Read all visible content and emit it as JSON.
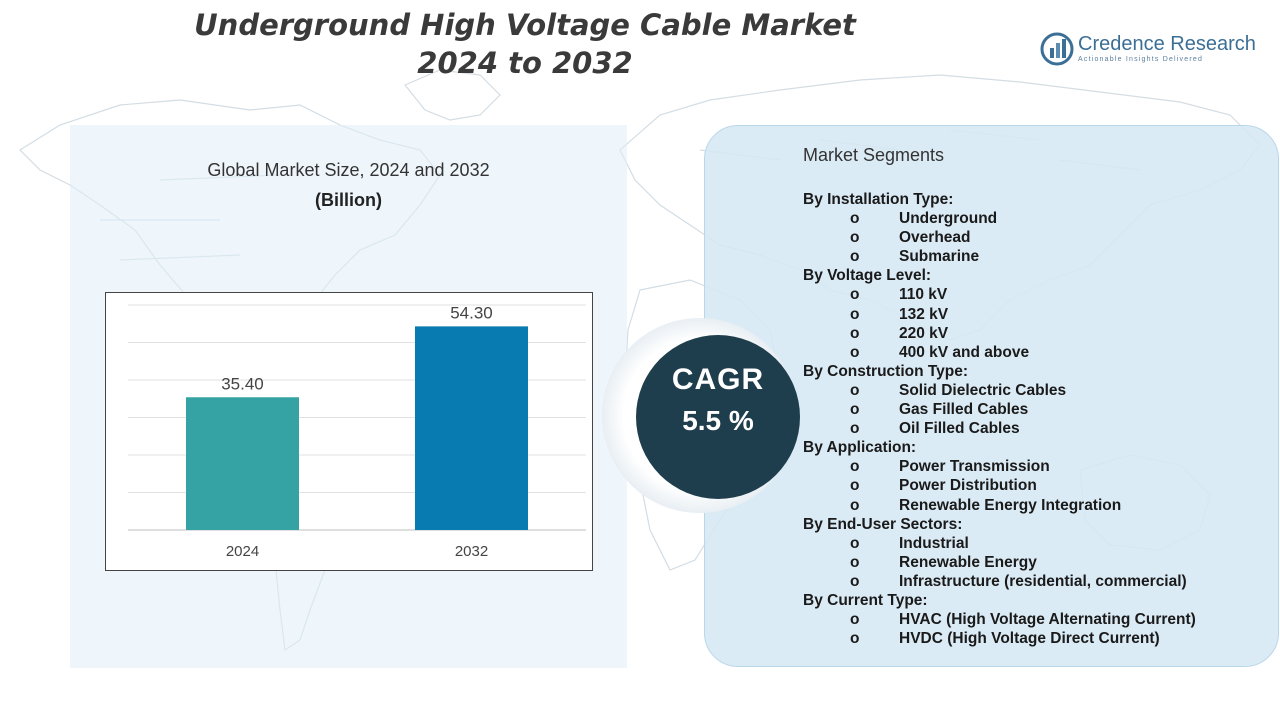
{
  "title_line1": "Underground High Voltage Cable Market",
  "title_line2": "2024 to 2032",
  "brand": {
    "name": "Credence Research",
    "tagline": "Actionable Insights Delivered",
    "color": "#3c6f96"
  },
  "chart_data": {
    "type": "bar",
    "title": "Global Market Size, 2024 and 2032",
    "unit": "(Billion)",
    "categories": [
      "2024",
      "2032"
    ],
    "values": [
      35.4,
      54.3
    ],
    "value_labels": [
      "35.40",
      "54.30"
    ],
    "colors": [
      "#35a3a3",
      "#087bb0"
    ],
    "ylim": [
      0,
      60
    ],
    "grid": true,
    "gridline_count": 6
  },
  "cagr": {
    "label": "CAGR",
    "value": "5.5 %"
  },
  "segments": {
    "title": "Market Segments",
    "bullet": "o",
    "groups": [
      {
        "name": "By Installation Type:",
        "items": [
          "Underground",
          "Overhead",
          "Submarine"
        ]
      },
      {
        "name": "By Voltage Level:",
        "items": [
          "110 kV",
          "132 kV",
          "220 kV",
          "400 kV and above"
        ]
      },
      {
        "name": "By Construction Type:",
        "items": [
          "Solid Dielectric Cables",
          "Gas Filled Cables",
          "Oil Filled Cables"
        ]
      },
      {
        "name": "By Application:",
        "items": [
          "Power Transmission",
          "Power Distribution",
          "Renewable Energy Integration"
        ]
      },
      {
        "name": "By End-User Sectors:",
        "items": [
          "Industrial",
          "Renewable Energy",
          "Infrastructure (residential, commercial)"
        ]
      },
      {
        "name": "By Current Type:",
        "items": [
          "HVAC (High Voltage Alternating Current)",
          "HVDC (High Voltage Direct Current)"
        ]
      }
    ]
  }
}
